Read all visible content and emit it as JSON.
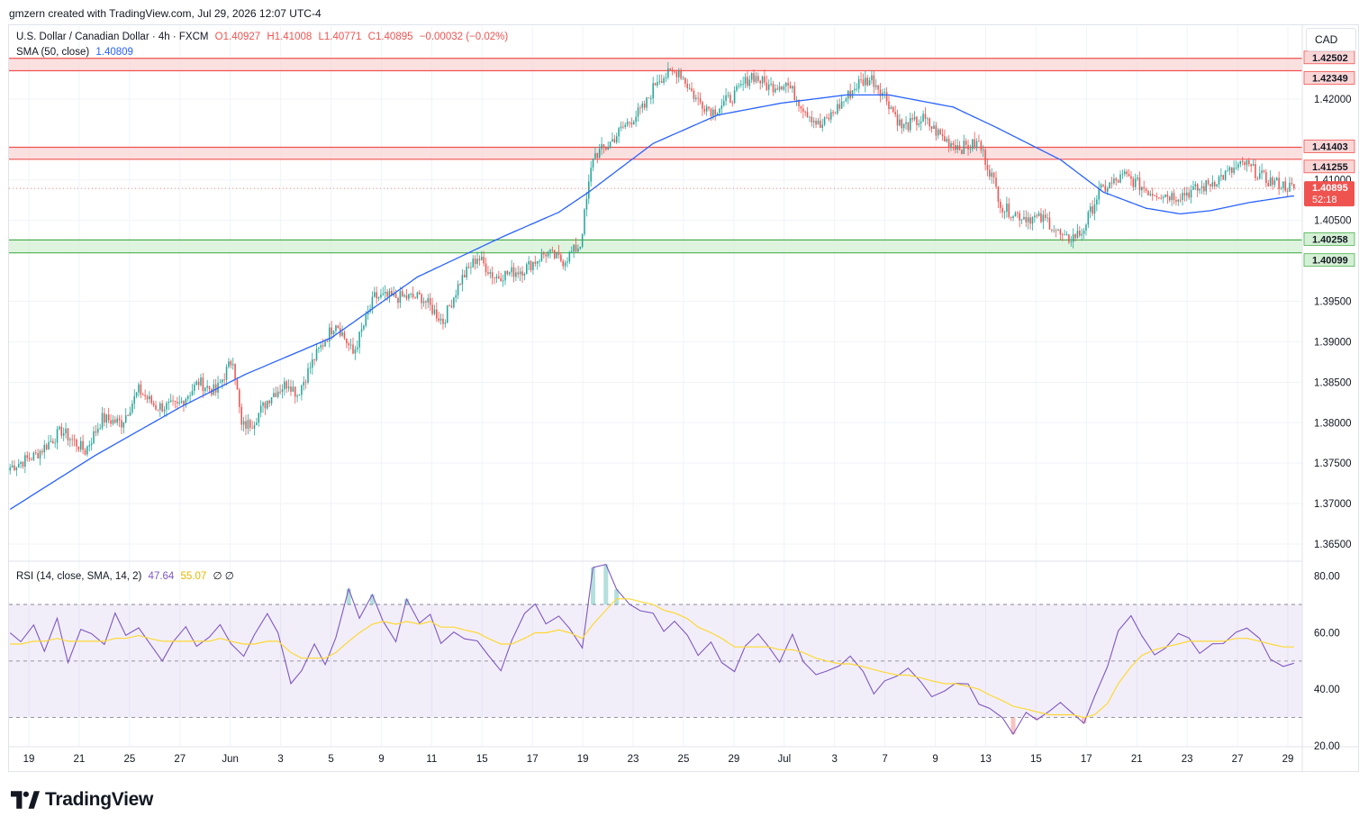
{
  "header": {
    "created_by": "gmzern created with TradingView.com, Jul 29, 2026 12:07 UTC-4"
  },
  "legend": {
    "symbol": "U.S. Dollar / Canadian Dollar · 4h · FXCM",
    "open": "O1.40927",
    "high": "H1.41008",
    "low": "L1.40771",
    "close": "C1.40895",
    "change": "−0.00032 (−0.02%)",
    "sma_label": "SMA (50, close)",
    "sma_value": "1.40809",
    "rsi_label": "RSI (14, close, SMA, 14, 2)",
    "rsi_value": "47.64",
    "rsi_sma_value": "55.07",
    "rsi_extra": "∅ ∅"
  },
  "currency_unit": "CAD",
  "brand": "TradingView",
  "colors": {
    "up": "#26a69a",
    "down": "#ef5350",
    "sma": "#2962ff",
    "rsi": "#7e57c2",
    "rsi_ma": "#fdd835",
    "resistance_fill": "#f9d6d6",
    "resistance_line": "#ef5350",
    "support_fill": "#d4f0d4",
    "support_line": "#4caf50"
  },
  "chart_data": [
    {
      "type": "candlestick",
      "title": "U.S. Dollar / Canadian Dollar · 4h · FXCM",
      "ylabel": "CAD",
      "ylim": [
        1.363,
        1.429
      ],
      "x_tick_labels": [
        "19",
        "21",
        "25",
        "27",
        "Jun",
        "3",
        "5",
        "9",
        "11",
        "15",
        "17",
        "19",
        "23",
        "25",
        "29",
        "Jul",
        "3",
        "7",
        "9",
        "13",
        "15",
        "17",
        "21",
        "23",
        "27",
        "29"
      ],
      "y_tick_labels": [
        "1.36500",
        "1.37000",
        "1.37500",
        "1.38000",
        "1.38500",
        "1.39000",
        "1.39500",
        "1.40500",
        "1.41000",
        "1.42000"
      ],
      "close_path": [
        [
          0,
          1.3745
        ],
        [
          12,
          1.376
        ],
        [
          24,
          1.379
        ],
        [
          35,
          1.3765
        ],
        [
          43,
          1.3805
        ],
        [
          52,
          1.38
        ],
        [
          60,
          1.384
        ],
        [
          68,
          1.382
        ],
        [
          78,
          1.382
        ],
        [
          88,
          1.385
        ],
        [
          96,
          1.3838
        ],
        [
          104,
          1.388
        ],
        [
          108,
          1.3795
        ],
        [
          113,
          1.38
        ],
        [
          122,
          1.3835
        ],
        [
          130,
          1.385
        ],
        [
          134,
          1.3835
        ],
        [
          142,
          1.388
        ],
        [
          152,
          1.3925
        ],
        [
          160,
          1.3885
        ],
        [
          170,
          1.3955
        ],
        [
          180,
          1.3955
        ],
        [
          192,
          1.3955
        ],
        [
          202,
          1.3925
        ],
        [
          210,
          1.3975
        ],
        [
          218,
          1.4005
        ],
        [
          226,
          1.398
        ],
        [
          240,
          1.399
        ],
        [
          250,
          1.401
        ],
        [
          258,
          1.4
        ],
        [
          266,
          1.402
        ],
        [
          272,
          1.413
        ],
        [
          278,
          1.414
        ],
        [
          286,
          1.4165
        ],
        [
          296,
          1.419
        ],
        [
          302,
          1.4225
        ],
        [
          312,
          1.4235
        ],
        [
          320,
          1.42
        ],
        [
          328,
          1.4185
        ],
        [
          338,
          1.4205
        ],
        [
          346,
          1.423
        ],
        [
          354,
          1.4215
        ],
        [
          362,
          1.422
        ],
        [
          370,
          1.419
        ],
        [
          378,
          1.4165
        ],
        [
          388,
          1.4195
        ],
        [
          396,
          1.422
        ],
        [
          402,
          1.4225
        ],
        [
          408,
          1.4205
        ],
        [
          416,
          1.4165
        ],
        [
          426,
          1.4175
        ],
        [
          436,
          1.415
        ],
        [
          444,
          1.414
        ],
        [
          452,
          1.4145
        ],
        [
          458,
          1.4105
        ],
        [
          463,
          1.4065
        ],
        [
          472,
          1.4055
        ],
        [
          484,
          1.405
        ],
        [
          492,
          1.4025
        ],
        [
          500,
          1.4035
        ],
        [
          508,
          1.4085
        ],
        [
          520,
          1.4105
        ],
        [
          532,
          1.4085
        ],
        [
          544,
          1.408
        ],
        [
          556,
          1.409
        ],
        [
          566,
          1.4105
        ],
        [
          576,
          1.412
        ],
        [
          586,
          1.41
        ],
        [
          598,
          1.409
        ]
      ],
      "sma_50": [
        [
          0,
          1.3693
        ],
        [
          40,
          1.376
        ],
        [
          80,
          1.382
        ],
        [
          110,
          1.386
        ],
        [
          150,
          1.3905
        ],
        [
          190,
          1.398
        ],
        [
          230,
          1.403
        ],
        [
          256,
          1.406
        ],
        [
          270,
          1.4085
        ],
        [
          300,
          1.4145
        ],
        [
          330,
          1.418
        ],
        [
          360,
          1.4195
        ],
        [
          390,
          1.4205
        ],
        [
          410,
          1.4205
        ],
        [
          440,
          1.419
        ],
        [
          460,
          1.4165
        ],
        [
          490,
          1.4125
        ],
        [
          510,
          1.4085
        ],
        [
          530,
          1.4065
        ],
        [
          546,
          1.4058
        ],
        [
          560,
          1.4062
        ],
        [
          578,
          1.4072
        ],
        [
          598,
          1.408
        ]
      ],
      "zones": [
        {
          "name": "resistance",
          "from": 1.42349,
          "to": 1.42502,
          "label_top": "1.42502",
          "label_bottom": "1.42349"
        },
        {
          "name": "mid-resistance",
          "from": 1.41255,
          "to": 1.41403,
          "label_top": "1.41403",
          "label_bottom": "1.41255"
        },
        {
          "name": "support",
          "from": 1.40099,
          "to": 1.40258,
          "label_top": "1.40258",
          "label_bottom": "1.40099"
        }
      ],
      "last_price": {
        "value": 1.40895,
        "label": "1.40895",
        "countdown": "52:18"
      }
    },
    {
      "type": "line",
      "title": "RSI (14, close, SMA, 14, 2)",
      "ylim": [
        20,
        85
      ],
      "y_tick_labels": [
        "20.00",
        "40.00",
        "60.00",
        "80.00"
      ],
      "bands": {
        "upper": 70,
        "middle": 50,
        "lower": 30
      },
      "series": [
        {
          "name": "RSI",
          "values": [
            58,
            56,
            62,
            54,
            65,
            50,
            60,
            58,
            55,
            66,
            60,
            63,
            56,
            52,
            58,
            61,
            55,
            60,
            62,
            57,
            52,
            58,
            66,
            60,
            42,
            48,
            55,
            50,
            60,
            75,
            66,
            72,
            64,
            58,
            70,
            62,
            67,
            55,
            62,
            59,
            56,
            52,
            48,
            58,
            66,
            70,
            62,
            64,
            60,
            54,
            82,
            84,
            76,
            70,
            66,
            68,
            60,
            64,
            58,
            52,
            56,
            50,
            46,
            54,
            60,
            56,
            50,
            60,
            48,
            44,
            46,
            50,
            52,
            46,
            40,
            42,
            44,
            48,
            44,
            38,
            40,
            44,
            40,
            35,
            32,
            28,
            26,
            30,
            28,
            32,
            34,
            30,
            28,
            36,
            48,
            62,
            66,
            60,
            54,
            56,
            60,
            58,
            54,
            56,
            58,
            62,
            60,
            56,
            52,
            50,
            48
          ]
        },
        {
          "name": "RSI-based MA",
          "values": [
            56,
            56,
            57,
            57,
            58,
            57,
            57,
            57,
            57,
            58,
            58,
            59,
            58,
            57,
            57,
            57,
            57,
            57,
            58,
            57,
            56,
            56,
            57,
            57,
            53,
            51,
            51,
            51,
            53,
            57,
            60,
            63,
            64,
            63,
            64,
            63,
            64,
            62,
            62,
            61,
            60,
            58,
            56,
            56,
            58,
            60,
            60,
            61,
            60,
            58,
            63,
            68,
            72,
            72,
            71,
            70,
            68,
            67,
            65,
            62,
            60,
            58,
            55,
            55,
            55,
            55,
            54,
            54,
            53,
            51,
            50,
            49,
            49,
            48,
            47,
            46,
            45,
            45,
            44,
            43,
            42,
            42,
            41,
            40,
            38,
            36,
            34,
            33,
            32,
            31,
            31,
            31,
            30,
            31,
            35,
            42,
            48,
            52,
            54,
            55,
            56,
            57,
            57,
            57,
            57,
            58,
            58,
            57,
            56,
            55,
            55
          ]
        }
      ]
    }
  ]
}
